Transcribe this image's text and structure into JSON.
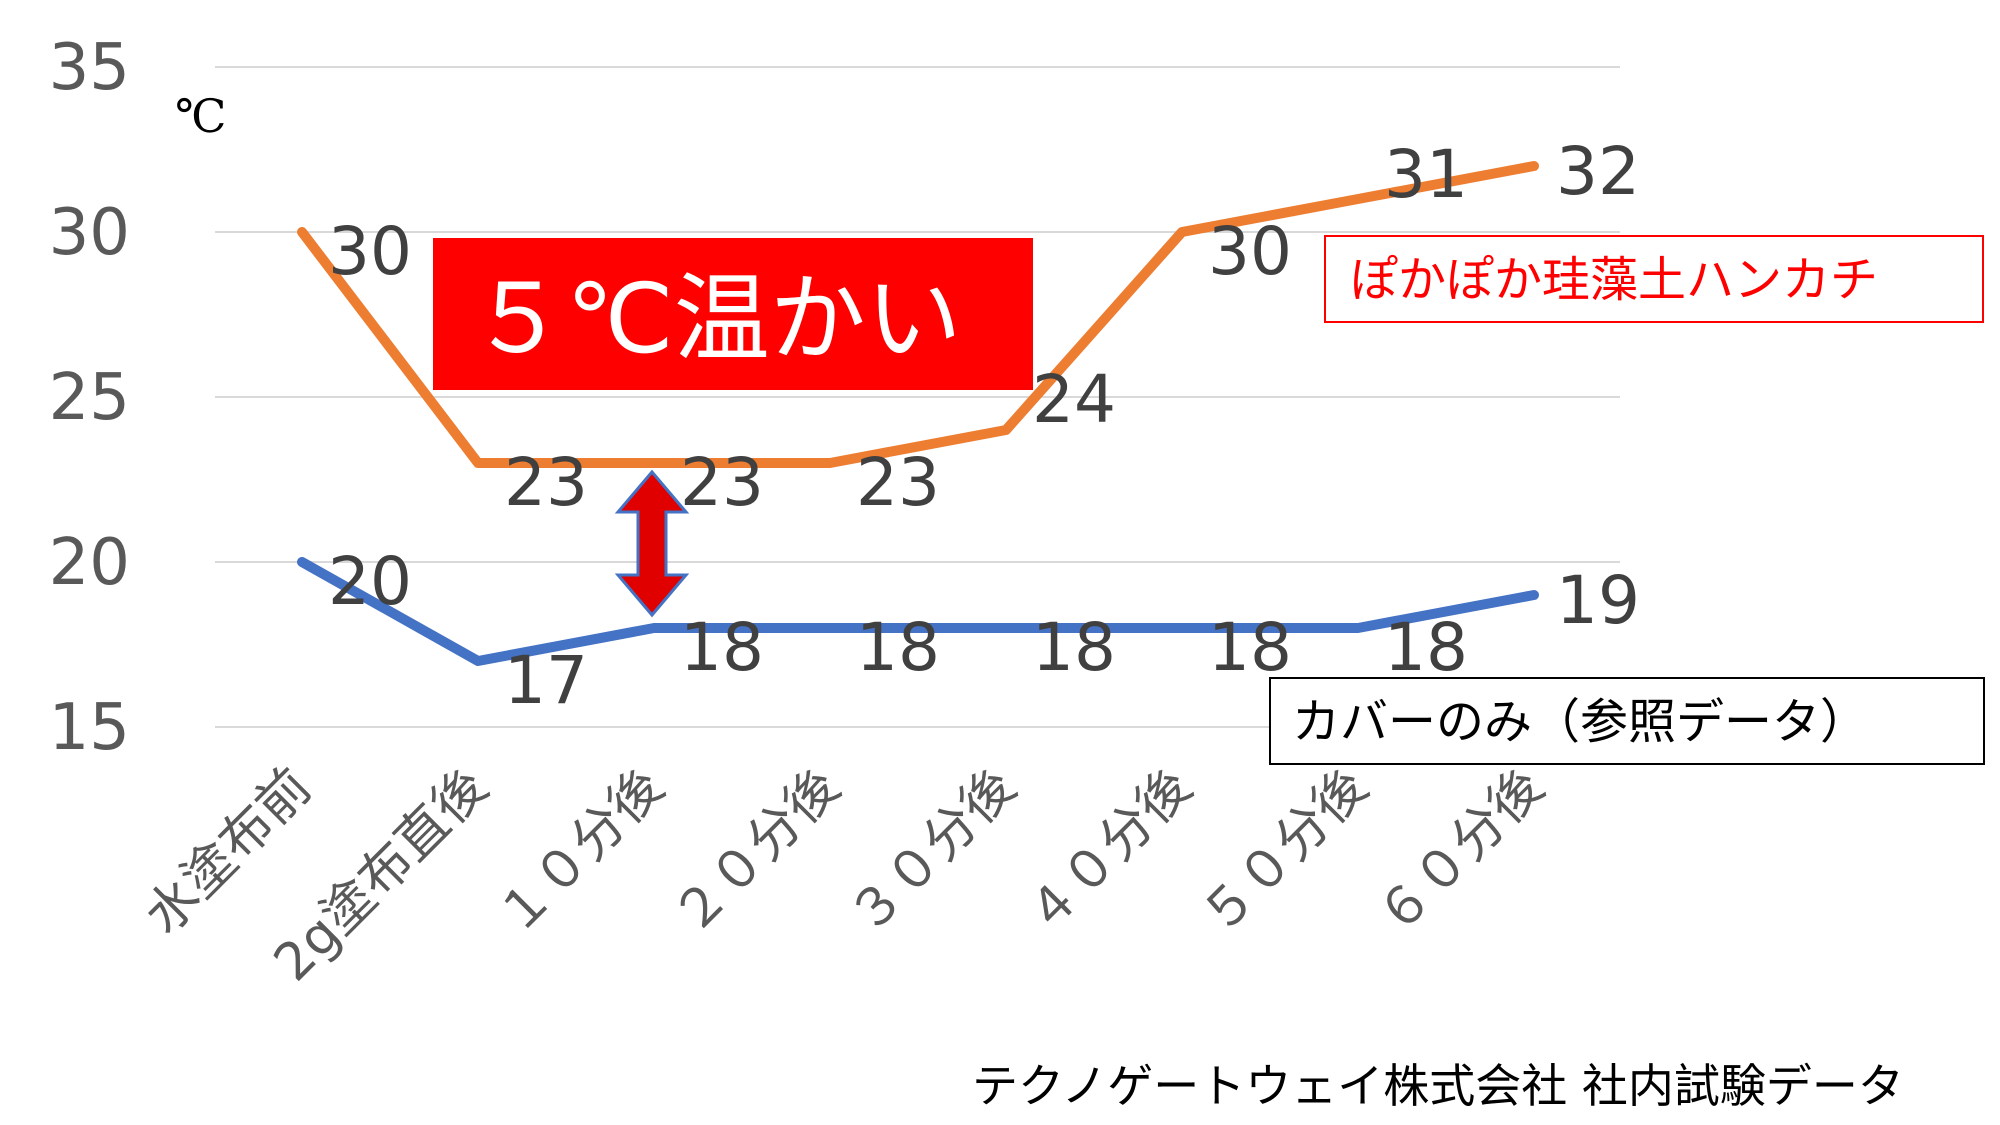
{
  "chart_data": {
    "type": "line",
    "ylabel": "℃",
    "ylim": [
      15,
      35
    ],
    "y_ticks": [
      "35",
      "30",
      "25",
      "20",
      "15"
    ],
    "grid": true,
    "categories": [
      "水塗布前",
      "2g塗布直後",
      "１０分後",
      "２０分後",
      "３０分後",
      "４０分後",
      "５０分後",
      "６０分後"
    ],
    "series": [
      {
        "name": "ぽかぽか珪藻土ハンカチ",
        "color": "#ed7d31",
        "values": [
          30,
          23,
          23,
          23,
          24,
          30,
          31,
          32
        ]
      },
      {
        "name": "カバーのみ（参照データ）",
        "color": "#4472c4",
        "values": [
          20,
          17,
          18,
          18,
          18,
          18,
          18,
          19
        ]
      }
    ]
  },
  "annotations": {
    "callout": "５℃温かい",
    "callout_color": "#ff0000",
    "arrow_color": "#e00000",
    "credit": "テクノゲートウェイ株式会社 社内試験データ"
  },
  "legend": {
    "orange_box_color": "#ff0000",
    "blue_box_color": "#000000"
  }
}
